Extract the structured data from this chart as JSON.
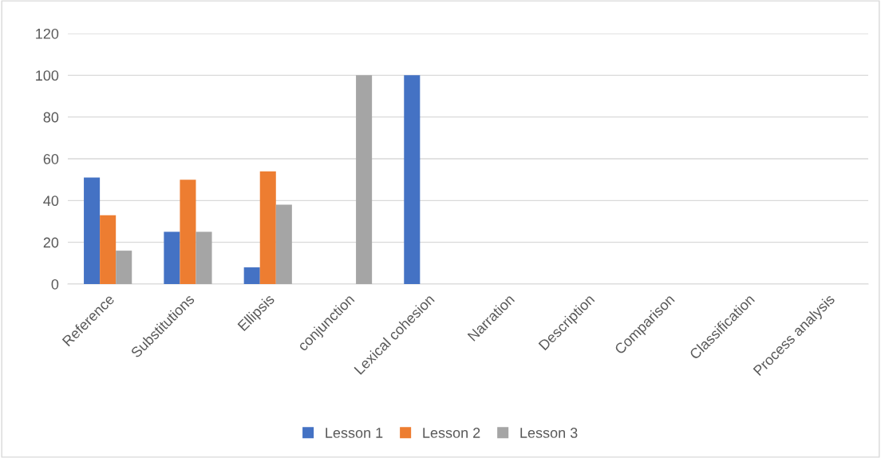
{
  "chart_data": {
    "type": "bar",
    "categories": [
      "Reference",
      "Substitutions",
      "Ellipsis",
      "conjunction",
      "Lexical cohesion",
      "Narration",
      "Description",
      "Comparison",
      "Classification",
      "Process analysis"
    ],
    "series": [
      {
        "name": "Lesson 1",
        "color": "#4472c4",
        "values": [
          51,
          25,
          8,
          null,
          100,
          null,
          null,
          null,
          null,
          null
        ]
      },
      {
        "name": "Lesson 2",
        "color": "#ed7d31",
        "values": [
          33,
          50,
          54,
          null,
          null,
          null,
          null,
          null,
          null,
          null
        ]
      },
      {
        "name": "Lesson 3",
        "color": "#a5a5a5",
        "values": [
          16,
          25,
          38,
          100,
          null,
          null,
          null,
          null,
          null,
          null
        ]
      }
    ],
    "ylim": [
      0,
      120
    ],
    "yticks": [
      0,
      20,
      40,
      60,
      80,
      100,
      120
    ],
    "grid": "y",
    "legend": "bottom"
  }
}
